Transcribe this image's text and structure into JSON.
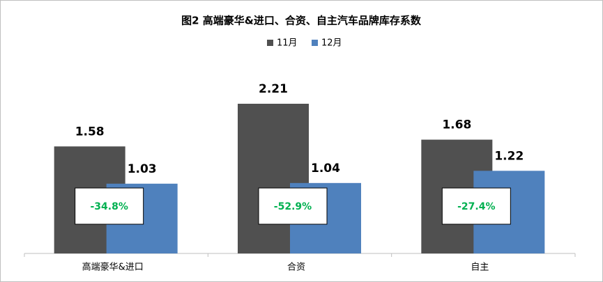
{
  "chart_data": {
    "type": "bar",
    "title": "图2 高端豪华&进口、合资、自主汽车品牌库存系数",
    "categories": [
      "高端豪华&进口",
      "合资",
      "自主"
    ],
    "series": [
      {
        "name": "11月",
        "color": "#505050",
        "values": [
          1.58,
          2.21,
          1.68
        ]
      },
      {
        "name": "12月",
        "color": "#4f81bd",
        "values": [
          1.03,
          1.04,
          1.22
        ]
      }
    ],
    "annotations": [
      "-34.8%",
      "-52.9%",
      "-27.4%"
    ],
    "annotation_color": "#00b050",
    "legend": "top"
  }
}
